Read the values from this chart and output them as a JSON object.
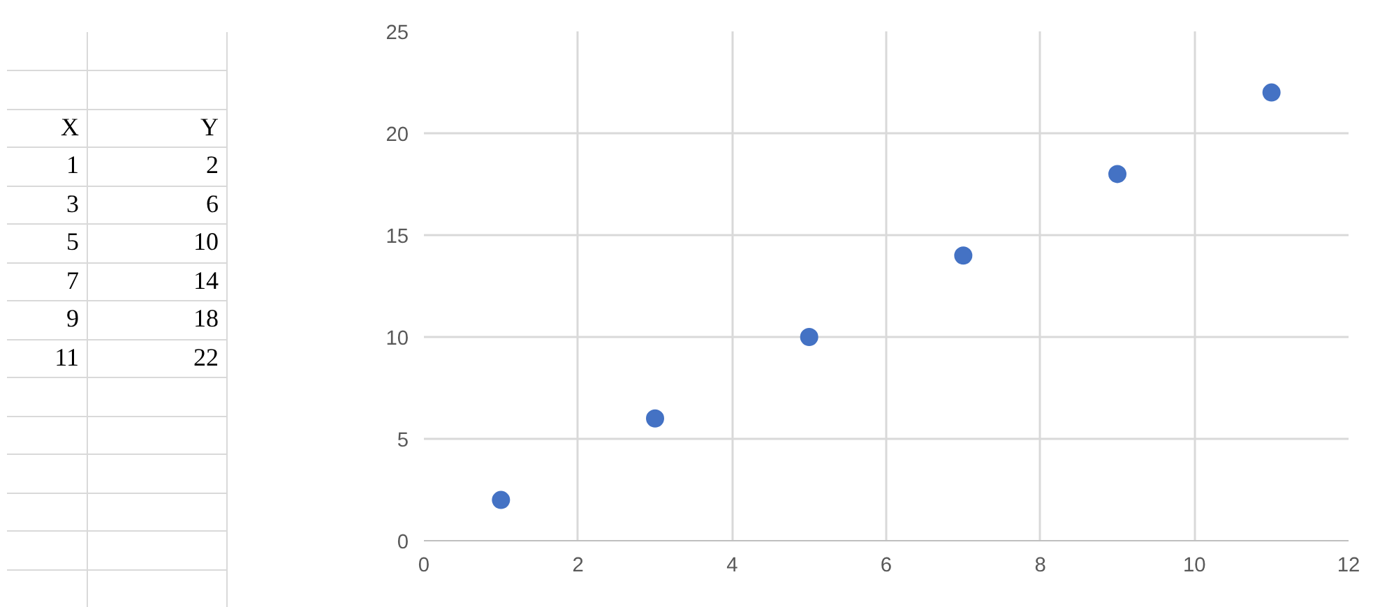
{
  "chart_data": {
    "type": "scatter",
    "annotations": [
      "X",
      "Y",
      "1",
      "2",
      "3",
      "6",
      "5",
      "10",
      "7",
      "14",
      "9",
      "18",
      "11",
      "22"
    ],
    "x": [
      1,
      3,
      5,
      7,
      9,
      11
    ],
    "series": [
      {
        "color": "#4472c4",
        "values": [
          2,
          6,
          10,
          14,
          18,
          22
        ]
      }
    ],
    "xlim": [
      0,
      12
    ],
    "xticks": [
      0,
      2,
      4,
      6,
      8,
      10,
      12
    ],
    "ylim": [
      0,
      25
    ],
    "yticks": [
      0,
      5,
      10,
      15,
      20,
      25
    ],
    "grid": true,
    "marker": "circle"
  }
}
